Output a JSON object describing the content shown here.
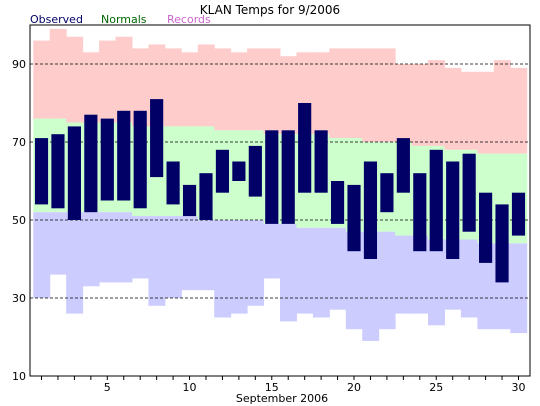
{
  "chart_data": {
    "type": "bar",
    "title": "KLAN Temps for 9/2006",
    "xlabel": "September 2006",
    "ylabel": "",
    "legend": [
      {
        "label": "Observed",
        "color": "#000066"
      },
      {
        "label": "Normals",
        "color": "#006600"
      },
      {
        "label": "Records",
        "color": "#cc66cc"
      }
    ],
    "colors": {
      "observed": "#000066",
      "normals": "#ccffcc",
      "record_high": "#ffcccc",
      "record_low": "#ccccff",
      "grid": "#000000"
    },
    "ylim": [
      10,
      100
    ],
    "yticks": [
      10,
      30,
      50,
      70,
      90
    ],
    "xticks": [
      5,
      10,
      15,
      20,
      25,
      30
    ],
    "grid": "horizontal dashed at 30, 50, 70, 90",
    "days": [
      1,
      2,
      3,
      4,
      5,
      6,
      7,
      8,
      9,
      10,
      11,
      12,
      13,
      14,
      15,
      16,
      17,
      18,
      19,
      20,
      21,
      22,
      23,
      24,
      25,
      26,
      27,
      28,
      29,
      30
    ],
    "series": [
      {
        "name": "Observed",
        "high": [
          71,
          72,
          74,
          77,
          76,
          78,
          78,
          81,
          65,
          59,
          62,
          68,
          65,
          69,
          73,
          73,
          80,
          73,
          60,
          59,
          65,
          62,
          71,
          62,
          68,
          65,
          67,
          57,
          54,
          57
        ],
        "low": [
          54,
          53,
          50,
          52,
          55,
          55,
          53,
          61,
          54,
          51,
          50,
          57,
          60,
          56,
          49,
          49,
          57,
          57,
          49,
          42,
          40,
          52,
          57,
          42,
          42,
          40,
          47,
          39,
          34,
          46
        ]
      },
      {
        "name": "Normals",
        "high": [
          76,
          76,
          75,
          75,
          75,
          75,
          74,
          74,
          74,
          74,
          74,
          73,
          73,
          73,
          72,
          72,
          72,
          72,
          71,
          71,
          70,
          70,
          70,
          69,
          69,
          68,
          68,
          67,
          67,
          67
        ],
        "low": [
          52,
          52,
          52,
          52,
          52,
          52,
          51,
          51,
          51,
          51,
          50,
          50,
          50,
          50,
          49,
          49,
          48,
          48,
          48,
          47,
          47,
          47,
          46,
          46,
          45,
          45,
          45,
          44,
          44,
          44
        ]
      },
      {
        "name": "Records",
        "high": [
          96,
          99,
          97,
          93,
          96,
          97,
          94,
          95,
          94,
          93,
          95,
          94,
          93,
          94,
          94,
          92,
          93,
          93,
          94,
          94,
          94,
          94,
          90,
          90,
          91,
          89,
          88,
          88,
          91,
          89
        ],
        "low": [
          30,
          36,
          26,
          33,
          34,
          34,
          35,
          28,
          30,
          32,
          32,
          25,
          26,
          28,
          35,
          24,
          26,
          25,
          27,
          22,
          19,
          22,
          26,
          26,
          23,
          27,
          25,
          22,
          22,
          21
        ]
      }
    ]
  }
}
